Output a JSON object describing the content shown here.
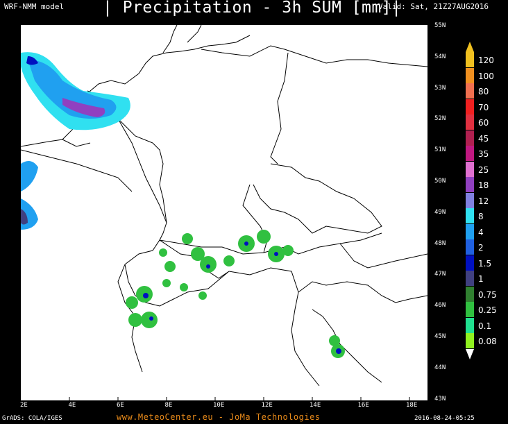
{
  "header": {
    "model": "WRF-NMM model",
    "title": "| Precipitation - 3h SUM [mm]|",
    "valid": "Valid: Sat, 21Z27AUG2016"
  },
  "axes": {
    "lat_labels": [
      "55N",
      "54N",
      "53N",
      "52N",
      "51N",
      "50N",
      "49N",
      "48N",
      "47N",
      "46N",
      "45N",
      "44N",
      "43N"
    ],
    "lon_labels": [
      "2E",
      "4E",
      "6E",
      "8E",
      "10E",
      "12E",
      "14E",
      "16E",
      "18E"
    ]
  },
  "legend": {
    "levels": [
      {
        "label": "120",
        "color": "#f0c020"
      },
      {
        "label": "100",
        "color": "#f09020"
      },
      {
        "label": "80",
        "color": "#f07050"
      },
      {
        "label": "70",
        "color": "#f02020"
      },
      {
        "label": "60",
        "color": "#e03040"
      },
      {
        "label": "45",
        "color": "#b02050"
      },
      {
        "label": "35",
        "color": "#c01880"
      },
      {
        "label": "25",
        "color": "#e070d0"
      },
      {
        "label": "18",
        "color": "#9040c0"
      },
      {
        "label": "12",
        "color": "#8080e0"
      },
      {
        "label": "8",
        "color": "#30e0f0"
      },
      {
        "label": "4",
        "color": "#20a0f0"
      },
      {
        "label": "2",
        "color": "#2060e0"
      },
      {
        "label": "1.5",
        "color": "#0010c0"
      },
      {
        "label": "1",
        "color": "#404080"
      },
      {
        "label": "0.75",
        "color": "#308030"
      },
      {
        "label": "0.25",
        "color": "#30c040"
      },
      {
        "label": "0.1",
        "color": "#20e090"
      },
      {
        "label": "0.08",
        "color": "#90f020"
      }
    ]
  },
  "footer": {
    "grads": "GrADS: COLA/IGES",
    "site": "www.MeteoCenter.eu  -  JoMa Technologies",
    "timestamp": "2016-08-24-05:25"
  }
}
